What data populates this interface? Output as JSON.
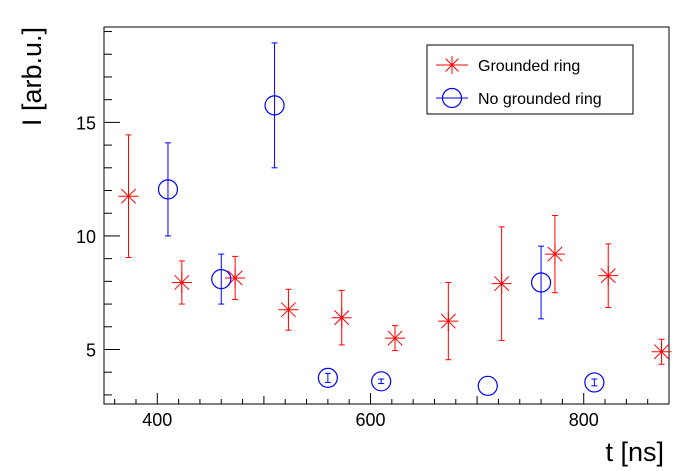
{
  "chart_data": {
    "type": "scatter",
    "xlabel": "t [ns]",
    "ylabel": "I [arb.u.]",
    "xlim": [
      350,
      880
    ],
    "ylim": [
      2.6,
      19.2
    ],
    "x_ticks": [
      400,
      600,
      800
    ],
    "y_ticks": [
      5,
      10,
      15
    ],
    "grid": false,
    "legend_position": "top-right",
    "series": [
      {
        "name": "Grounded ring",
        "color": "#ff0000",
        "marker": "star",
        "points": [
          {
            "x": 373,
            "y": 11.75,
            "err": 2.7
          },
          {
            "x": 423,
            "y": 7.95,
            "err": 0.95
          },
          {
            "x": 473,
            "y": 8.15,
            "err": 0.95
          },
          {
            "x": 523,
            "y": 6.75,
            "err": 0.9
          },
          {
            "x": 573,
            "y": 6.4,
            "err": 1.2
          },
          {
            "x": 623,
            "y": 5.5,
            "err": 0.55
          },
          {
            "x": 673,
            "y": 6.25,
            "err": 1.7
          },
          {
            "x": 723,
            "y": 7.9,
            "err": 2.5
          },
          {
            "x": 773,
            "y": 9.2,
            "err": 1.7
          },
          {
            "x": 823,
            "y": 8.25,
            "err": 1.4
          },
          {
            "x": 873,
            "y": 4.9,
            "err": 0.55
          }
        ]
      },
      {
        "name": "No grounded ring",
        "color": "#0000ff",
        "marker": "circle",
        "points": [
          {
            "x": 410,
            "y": 12.05,
            "err": 2.05
          },
          {
            "x": 460,
            "y": 8.1,
            "err": 1.1
          },
          {
            "x": 510,
            "y": 15.75,
            "err": 2.75
          },
          {
            "x": 560,
            "y": 3.75,
            "err": 0.2
          },
          {
            "x": 610,
            "y": 3.6,
            "err": 0.1
          },
          {
            "x": 710,
            "y": 3.4,
            "err": 0.0
          },
          {
            "x": 760,
            "y": 7.95,
            "err": 1.6
          },
          {
            "x": 810,
            "y": 3.55,
            "err": 0.15
          }
        ]
      }
    ]
  }
}
